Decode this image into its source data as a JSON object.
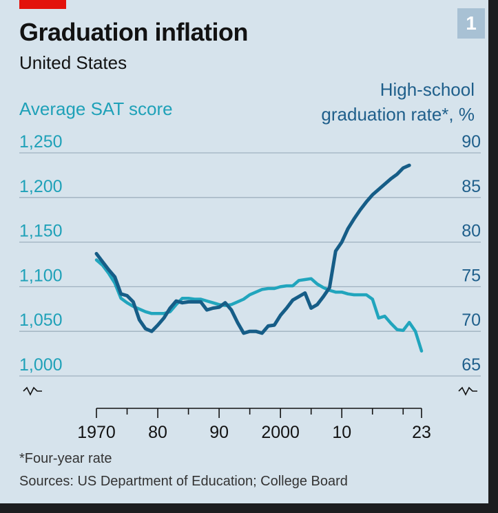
{
  "header": {
    "title": "Graduation inflation",
    "subtitle": "United States",
    "badge": "1"
  },
  "footer": {
    "footnote": "*Four-year rate",
    "source": "Sources: US Department of Education; College Board"
  },
  "colors": {
    "sat": "#21a5bd",
    "grad": "#165d87",
    "background": "#d6e3ec",
    "grid": "#9fb1bf",
    "accent": "#e3120b"
  },
  "chart_data": {
    "type": "line",
    "ylabel_left": "Average SAT score",
    "ylabel_right": "High-school graduation rate*, %",
    "xlim": [
      1970,
      2023
    ],
    "ylim_left": [
      1000,
      1250
    ],
    "ylim_right": [
      65,
      90
    ],
    "x_ticks": [
      {
        "value": 1970,
        "label": "1970"
      },
      {
        "value": 1980,
        "label": "80"
      },
      {
        "value": 1990,
        "label": "90"
      },
      {
        "value": 2000,
        "label": "2000"
      },
      {
        "value": 2010,
        "label": "10"
      },
      {
        "value": 2023,
        "label": "23"
      }
    ],
    "left_ticks": [
      "1,000",
      "1,050",
      "1,100",
      "1,150",
      "1,200",
      "1,250"
    ],
    "right_ticks": [
      "65",
      "70",
      "75",
      "80",
      "85",
      "90"
    ],
    "grid": true,
    "series": [
      {
        "name": "Average SAT score",
        "axis": "left",
        "x": [
          1970,
          1971,
          1972,
          1973,
          1974,
          1975,
          1976,
          1977,
          1978,
          1979,
          1980,
          1981,
          1982,
          1983,
          1984,
          1985,
          1986,
          1987,
          1988,
          1989,
          1990,
          1991,
          1992,
          1993,
          1994,
          1995,
          1996,
          1997,
          1998,
          1999,
          2000,
          2001,
          2002,
          2003,
          2004,
          2005,
          2006,
          2007,
          2008,
          2009,
          2010,
          2011,
          2012,
          2013,
          2014,
          2015,
          2016,
          2017,
          2018,
          2019,
          2020,
          2021,
          2022,
          2023
        ],
        "values": [
          1130,
          1124,
          1115,
          1104,
          1087,
          1082,
          1078,
          1075,
          1072,
          1070,
          1070,
          1070,
          1072,
          1080,
          1087,
          1087,
          1086,
          1086,
          1084,
          1082,
          1080,
          1079,
          1080,
          1083,
          1086,
          1091,
          1094,
          1097,
          1098,
          1098,
          1100,
          1101,
          1101,
          1107,
          1108,
          1109,
          1103,
          1099,
          1096,
          1094,
          1094,
          1092,
          1091,
          1091,
          1091,
          1086,
          1065,
          1067,
          1059,
          1052,
          1051,
          1060,
          1050,
          1028
        ]
      },
      {
        "name": "High-school graduation rate*, %",
        "axis": "right",
        "x": [
          1970,
          1971,
          1972,
          1973,
          1974,
          1975,
          1976,
          1977,
          1978,
          1979,
          1980,
          1981,
          1982,
          1983,
          1984,
          1985,
          1986,
          1987,
          1988,
          1989,
          1990,
          1991,
          1992,
          1993,
          1994,
          1995,
          1996,
          1997,
          1998,
          1999,
          2000,
          2001,
          2002,
          2003,
          2004,
          2005,
          2006,
          2007,
          2008,
          2009,
          2010,
          2011,
          2012,
          2013,
          2014,
          2015,
          2016,
          2017,
          2018,
          2019,
          2020,
          2021
        ],
        "values": [
          78.7,
          77.8,
          76.9,
          76.1,
          74.2,
          74.0,
          73.3,
          71.3,
          70.3,
          70.0,
          70.7,
          71.5,
          72.6,
          73.4,
          73.2,
          73.3,
          73.3,
          73.3,
          72.4,
          72.6,
          72.7,
          73.2,
          72.4,
          71.0,
          69.8,
          70.0,
          70.0,
          69.8,
          70.6,
          70.7,
          71.8,
          72.6,
          73.5,
          73.9,
          74.3,
          72.6,
          73.0,
          73.9,
          74.9,
          79.0,
          80.0,
          81.5,
          82.6,
          83.6,
          84.5,
          85.3,
          85.9,
          86.5,
          87.1,
          87.6,
          88.3,
          88.6
        ]
      }
    ]
  }
}
